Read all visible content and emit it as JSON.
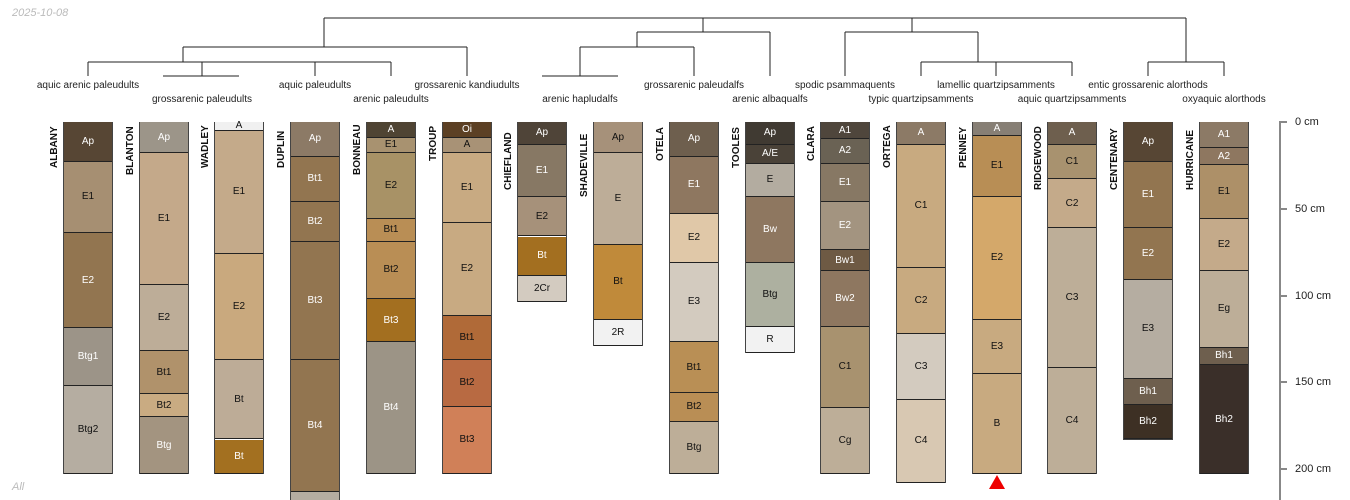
{
  "date": "2025-10-08",
  "subset_label": "All",
  "depth_axis": {
    "unit": "cm",
    "ticks": [
      {
        "value": 0,
        "label": "0 cm"
      },
      {
        "value": 50,
        "label": "50 cm"
      },
      {
        "value": 100,
        "label": "100 cm"
      },
      {
        "value": 150,
        "label": "150 cm"
      },
      {
        "value": 200,
        "label": "200 cm"
      }
    ]
  },
  "dendrogram_leaves": [
    {
      "label": "aquic arenic paleudults",
      "row": 1
    },
    {
      "label": "grossarenic paleudults",
      "row": 2
    },
    {
      "label": "aquic paleudults",
      "row": 1
    },
    {
      "label": "arenic paleudults",
      "row": 2
    },
    {
      "label": "grossarenic kandiudults",
      "row": 1
    },
    {
      "label": "arenic hapludalfs",
      "row": 2
    },
    {
      "label": "grossarenic paleudalfs",
      "row": 1
    },
    {
      "label": "arenic albaqualfs",
      "row": 2
    },
    {
      "label": "spodic psammaquents",
      "row": 1
    },
    {
      "label": "typic quartzipsamments",
      "row": 2
    },
    {
      "label": "lamellic quartzipsamments",
      "row": 1
    },
    {
      "label": "aquic quartzipsamments",
      "row": 2
    },
    {
      "label": "entic grossarenic alorthods",
      "row": 1
    },
    {
      "label": "oxyaquic alorthods",
      "row": 2
    }
  ],
  "profiles": [
    {
      "name": "ALBANY",
      "horizons": [
        [
          "Ap",
          0,
          23,
          "#574634",
          1
        ],
        [
          "E1",
          23,
          64,
          "#a68f72",
          0
        ],
        [
          "E2",
          64,
          119,
          "#927550",
          1
        ],
        [
          "Btg1",
          119,
          152,
          "#9c9488",
          1
        ],
        [
          "Btg2",
          152,
          203,
          "#b5ada1",
          0
        ]
      ]
    },
    {
      "name": "BLANTON",
      "horizons": [
        [
          "Ap",
          0,
          18,
          "#9c9589",
          1
        ],
        [
          "E1",
          18,
          94,
          "#c4a98a",
          0
        ],
        [
          "E2",
          94,
          132,
          "#bdad98",
          0
        ],
        [
          "Bt1",
          132,
          157,
          "#b0926b",
          0
        ],
        [
          "Bt2",
          157,
          170,
          "#c9ab82",
          0
        ],
        [
          "Btg",
          170,
          203,
          "#a39480",
          1
        ]
      ]
    },
    {
      "name": "WADLEY",
      "horizons": [
        [
          "A",
          0,
          5,
          "#f0f0f0",
          0
        ],
        [
          "E1",
          5,
          76,
          "#c4aa8a",
          0
        ],
        [
          "E2",
          76,
          137,
          "#c9a97e",
          0
        ],
        [
          "Bt",
          137,
          183,
          "#bdac97",
          0
        ],
        [
          "Bt",
          183,
          203,
          "#a37020",
          1
        ]
      ]
    },
    {
      "name": "DUPLIN",
      "horizons": [
        [
          "Ap",
          0,
          20,
          "#8c7a66",
          1
        ],
        [
          "Bt1",
          20,
          46,
          "#927550",
          1
        ],
        [
          "Bt2",
          46,
          69,
          "#927550",
          1
        ],
        [
          "Bt3",
          69,
          137,
          "#927550",
          1
        ],
        [
          "Bt4",
          137,
          213,
          "#927550",
          1
        ],
        [
          "",
          213,
          235,
          "#b5ada1",
          0
        ]
      ]
    },
    {
      "name": "BONNEAU",
      "horizons": [
        [
          "A",
          0,
          9,
          "#4f4433",
          1
        ],
        [
          "E1",
          9,
          18,
          "#a89270",
          0
        ],
        [
          "E2",
          18,
          56,
          "#a89266",
          0
        ],
        [
          "Bt1",
          56,
          69,
          "#b98e55",
          0
        ],
        [
          "Bt2",
          69,
          102,
          "#b98e55",
          0
        ],
        [
          "Bt3",
          102,
          127,
          "#a36f20",
          1
        ],
        [
          "Bt4",
          127,
          203,
          "#9c9486",
          1
        ]
      ]
    },
    {
      "name": "TROUP",
      "horizons": [
        [
          "Oi",
          0,
          9,
          "#5c4024",
          1
        ],
        [
          "A",
          9,
          18,
          "#a89276",
          0
        ],
        [
          "E1",
          18,
          58,
          "#c8aa82",
          0
        ],
        [
          "E2",
          58,
          112,
          "#c8aa82",
          0
        ],
        [
          "Bt1",
          112,
          137,
          "#b06a38",
          0
        ],
        [
          "Bt2",
          137,
          164,
          "#b86a42",
          0
        ],
        [
          "Bt3",
          164,
          203,
          "#d08058",
          0
        ]
      ]
    },
    {
      "name": "CHIEFLAND",
      "horizons": [
        [
          "Ap",
          0,
          13,
          "#4f4438",
          1
        ],
        [
          "E1",
          13,
          43,
          "#877864",
          1
        ],
        [
          "E2",
          43,
          66,
          "#a6917a",
          0
        ],
        [
          "Bt",
          66,
          89,
          "#a36f20",
          1
        ],
        [
          "2Cr",
          89,
          104,
          "#d3cbc0",
          0
        ]
      ]
    },
    {
      "name": "SHADEVILLE",
      "horizons": [
        [
          "Ap",
          0,
          18,
          "#a6917a",
          0
        ],
        [
          "E",
          18,
          71,
          "#bdad98",
          0
        ],
        [
          "Bt",
          71,
          114,
          "#c08a3a",
          0
        ],
        [
          "2R",
          114,
          129,
          "#f2f2f2",
          0
        ]
      ]
    },
    {
      "name": "OTELA",
      "horizons": [
        [
          "Ap",
          0,
          20,
          "#6e5f4e",
          1
        ],
        [
          "E1",
          20,
          53,
          "#8e7760",
          1
        ],
        [
          "E2",
          53,
          81,
          "#e0c8a8",
          0
        ],
        [
          "E3",
          81,
          127,
          "#d3cbbf",
          0
        ],
        [
          "Bt1",
          127,
          156,
          "#b98f55",
          0
        ],
        [
          "Bt2",
          156,
          173,
          "#b98e55",
          0
        ],
        [
          "Btg",
          173,
          203,
          "#bdae98",
          0
        ]
      ]
    },
    {
      "name": "TOOLES",
      "horizons": [
        [
          "Ap",
          0,
          13,
          "#403a32",
          1
        ],
        [
          "A/E",
          13,
          24,
          "#4a4238",
          1
        ],
        [
          "E",
          24,
          43,
          "#b3aca0",
          0
        ],
        [
          "Bw",
          43,
          81,
          "#8e7760",
          1
        ],
        [
          "Btg",
          81,
          118,
          "#adb0a0",
          0
        ],
        [
          "R",
          118,
          133,
          "#f2f2f2",
          0
        ]
      ]
    },
    {
      "name": "CLARA",
      "horizons": [
        [
          "A1",
          0,
          10,
          "#4f463c",
          1
        ],
        [
          "A2",
          10,
          24,
          "#6a6254",
          1
        ],
        [
          "E1",
          24,
          46,
          "#877864",
          1
        ],
        [
          "E2",
          46,
          74,
          "#a39480",
          1
        ],
        [
          "Bw1",
          74,
          86,
          "#6e5a44",
          1
        ],
        [
          "Bw2",
          86,
          118,
          "#8e7760",
          1
        ],
        [
          "C1",
          118,
          165,
          "#a8926f",
          0
        ],
        [
          "Cg",
          165,
          203,
          "#bdae98",
          0
        ]
      ]
    },
    {
      "name": "ORTEGA",
      "horizons": [
        [
          "A",
          0,
          13,
          "#8c7a66",
          1
        ],
        [
          "C1",
          13,
          84,
          "#c8aa80",
          0
        ],
        [
          "C2",
          84,
          122,
          "#c8aa80",
          0
        ],
        [
          "C3",
          122,
          160,
          "#d3cbbf",
          0
        ],
        [
          "C4",
          160,
          208,
          "#d8c8b2",
          0
        ]
      ]
    },
    {
      "name": "PENNEY",
      "marker": true,
      "horizons": [
        [
          "A",
          0,
          8,
          "#877f75",
          1
        ],
        [
          "E1",
          8,
          43,
          "#b88e55",
          0
        ],
        [
          "E2",
          43,
          114,
          "#d4a86a",
          0
        ],
        [
          "E3",
          114,
          145,
          "#c8aa80",
          0
        ],
        [
          "B",
          145,
          203,
          "#c8aa80",
          0
        ]
      ]
    },
    {
      "name": "RIDGEWOOD",
      "horizons": [
        [
          "A",
          0,
          13,
          "#6e5f4e",
          1
        ],
        [
          "C1",
          13,
          33,
          "#a8926f",
          0
        ],
        [
          "C2",
          33,
          61,
          "#c4aa8a",
          0
        ],
        [
          "C3",
          61,
          142,
          "#bdae98",
          0
        ],
        [
          "C4",
          142,
          203,
          "#bdae98",
          0
        ]
      ]
    },
    {
      "name": "CENTENARY",
      "horizons": [
        [
          "Ap",
          0,
          23,
          "#574634",
          1
        ],
        [
          "E1",
          23,
          61,
          "#927550",
          1
        ],
        [
          "E2",
          61,
          91,
          "#927550",
          1
        ],
        [
          "E3",
          91,
          148,
          "#b5ada1",
          0
        ],
        [
          "Bh1",
          148,
          163,
          "#6e5f4e",
          1
        ],
        [
          "Bh2",
          163,
          183,
          "#3d3024",
          1
        ]
      ]
    },
    {
      "name": "HURRICANE",
      "horizons": [
        [
          "A1",
          0,
          15,
          "#8c7a66",
          1
        ],
        [
          "A2",
          15,
          25,
          "#8e7760",
          1
        ],
        [
          "E1",
          25,
          56,
          "#ad9068",
          0
        ],
        [
          "E2",
          56,
          86,
          "#c4aa8a",
          0
        ],
        [
          "Eg",
          86,
          130,
          "#bdae98",
          0
        ],
        [
          "Bh1",
          130,
          140,
          "#6e5f4e",
          1
        ],
        [
          "Bh2",
          140,
          203,
          "#3a2f29",
          1
        ]
      ]
    }
  ]
}
